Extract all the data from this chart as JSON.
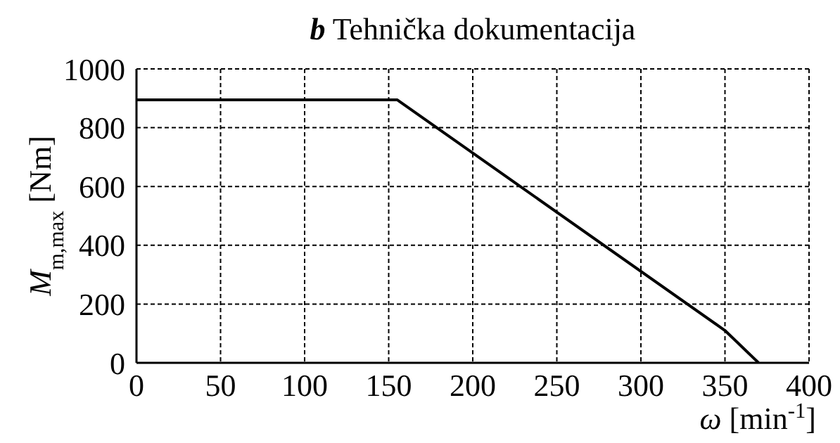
{
  "chart_data": {
    "type": "line",
    "title": "b  Tehnička dokumentacija",
    "xlabel": "ω [min$^{-1}$]",
    "ylabel": "M$_{m,max}$  [Nm]",
    "x": [
      0,
      155,
      350,
      370
    ],
    "series": [
      {
        "color": "#000000",
        "values": [
          895,
          895,
          110,
          0
        ]
      }
    ],
    "xlim": [
      0,
      400
    ],
    "xticks": [
      0,
      50,
      100,
      150,
      200,
      250,
      300,
      350,
      400
    ],
    "ylim": [
      0,
      1000
    ],
    "yticks": [
      0,
      200,
      400,
      600,
      800,
      1000
    ],
    "grid": true,
    "line_style": "solid",
    "marker": "none"
  }
}
